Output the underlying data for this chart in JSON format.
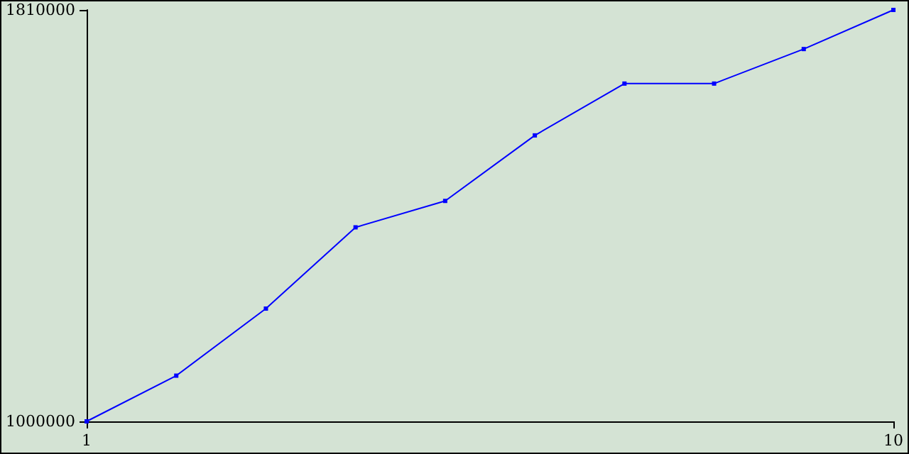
{
  "chart_data": {
    "type": "line",
    "x": [
      1,
      2,
      3,
      4,
      5,
      6,
      7,
      8,
      9,
      10
    ],
    "series": [
      {
        "color": "#0000ff",
        "values": [
          1000000,
          1090000,
          1222000,
          1382000,
          1434000,
          1563000,
          1665000,
          1665000,
          1733000,
          1810000
        ]
      }
    ],
    "xlim": [
      1,
      10
    ],
    "xticks": [
      1,
      10
    ],
    "ylim": [
      1000000,
      1810000
    ],
    "yticks": [
      1000000,
      1810000
    ],
    "grid": false,
    "marker": "square",
    "line_style": "solid"
  }
}
